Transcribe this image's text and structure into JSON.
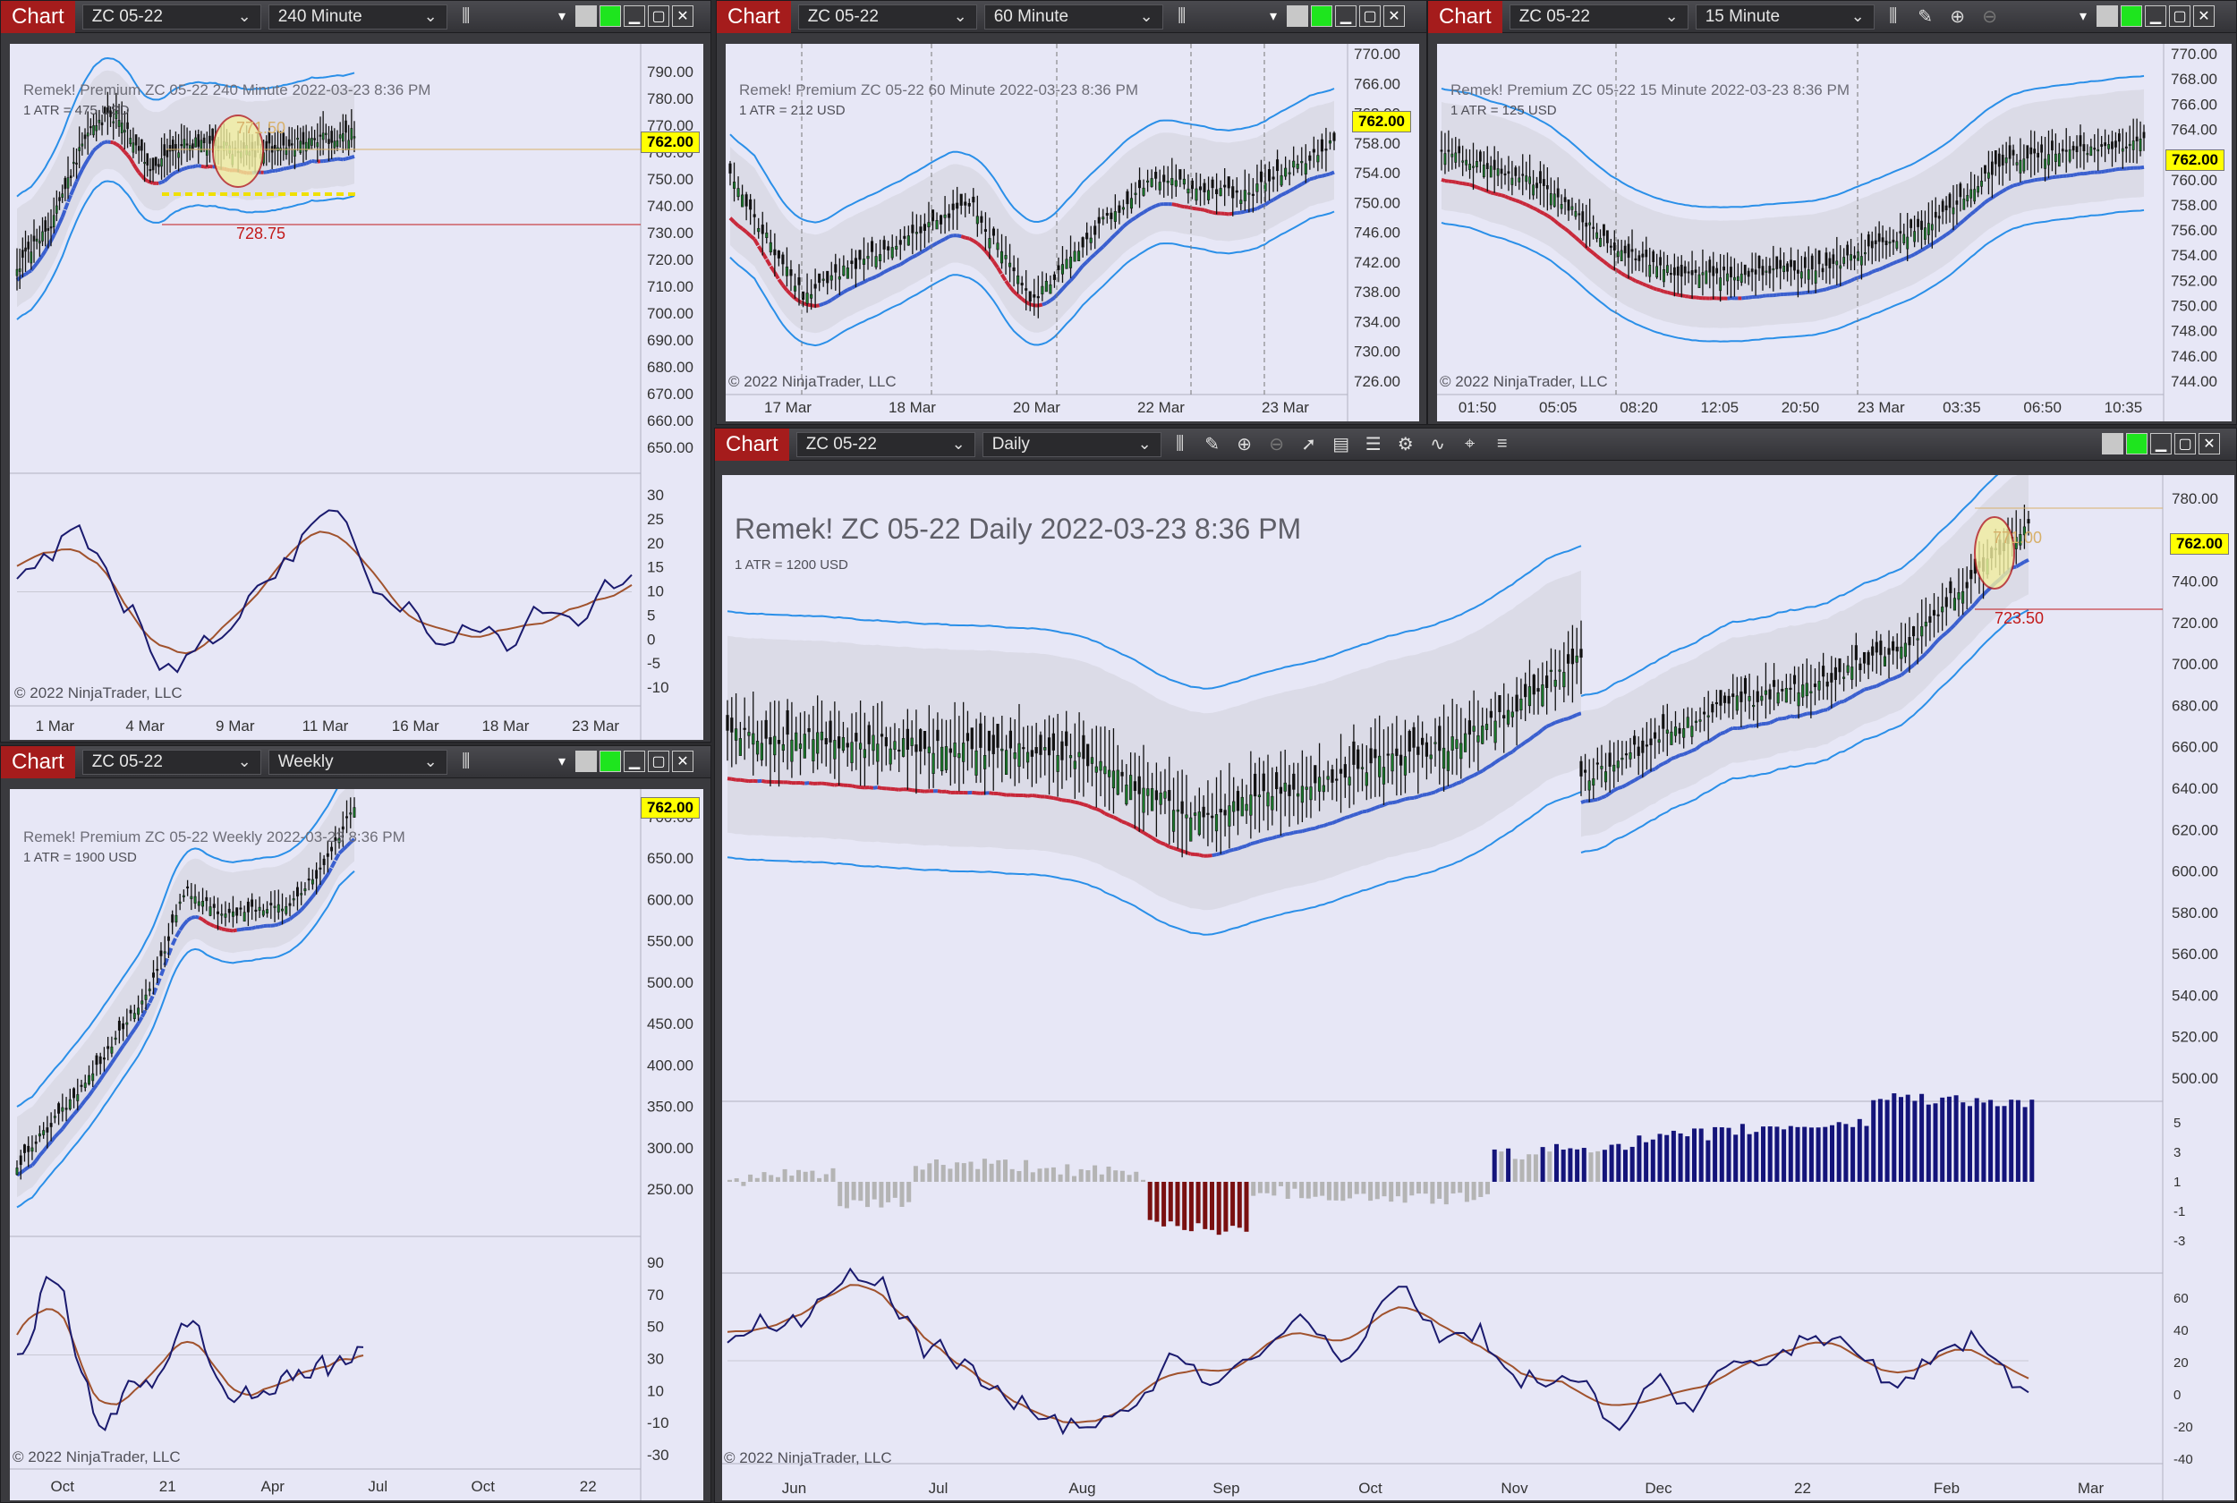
{
  "common": {
    "chart_label": "Chart",
    "symbol": "ZC 05-22",
    "copyright": "© 2022 NinjaTrader, LLC",
    "last_price": "762.00"
  },
  "windows": {
    "w240": {
      "interval": "240 Minute",
      "title": "Remek!  Premium  ZC 05-22  240 Minute  2022-03-23 8:36 PM",
      "atr": "1 ATR = 475 USD",
      "annot_high": "771.50",
      "annot_low": "728.75",
      "price_ticks": [
        "790.00",
        "780.00",
        "770.00",
        "760.00",
        "750.00",
        "740.00",
        "730.00",
        "720.00",
        "710.00",
        "700.00",
        "690.00",
        "680.00",
        "670.00",
        "660.00",
        "650.00"
      ],
      "osc_ticks": [
        "30",
        "25",
        "20",
        "15",
        "10",
        "5",
        "0",
        "-5",
        "-10"
      ],
      "date_ticks": [
        "1 Mar",
        "4 Mar",
        "9 Mar",
        "11 Mar",
        "16 Mar",
        "18 Mar",
        "23 Mar"
      ]
    },
    "w60": {
      "interval": "60 Minute",
      "title": "Remek!  Premium  ZC 05-22  60 Minute  2022-03-23 8:36 PM",
      "atr": "1 ATR = 212 USD",
      "price_ticks": [
        "770.00",
        "766.00",
        "762.00",
        "758.00",
        "754.00",
        "750.00",
        "746.00",
        "742.00",
        "738.00",
        "734.00",
        "730.00",
        "726.00"
      ],
      "date_ticks": [
        "17 Mar",
        "18 Mar",
        "20 Mar",
        "22 Mar",
        "23 Mar"
      ]
    },
    "w15": {
      "interval": "15 Minute",
      "title": "Remek!  Premium  ZC 05-22  15 Minute  2022-03-23 8:36 PM",
      "atr": "1 ATR = 125 USD",
      "price_ticks": [
        "770.00",
        "768.00",
        "766.00",
        "764.00",
        "762.00",
        "760.00",
        "758.00",
        "756.00",
        "754.00",
        "752.00",
        "750.00",
        "748.00",
        "746.00",
        "744.00"
      ],
      "date_ticks": [
        "01:50",
        "05:05",
        "08:20",
        "12:05",
        "20:50",
        "23 Mar",
        "03:35",
        "06:50",
        "10:35"
      ]
    },
    "wWeekly": {
      "interval": "Weekly",
      "title": "Remek!  Premium  ZC 05-22  Weekly  2022-03-23 8:36 PM",
      "atr": "1 ATR = 1900 USD",
      "price_ticks": [
        "700.00",
        "650.00",
        "600.00",
        "550.00",
        "500.00",
        "450.00",
        "400.00",
        "350.00",
        "300.00",
        "250.00"
      ],
      "osc_ticks": [
        "90",
        "70",
        "50",
        "30",
        "10",
        "-10",
        "-30"
      ],
      "date_ticks": [
        "Oct",
        "21",
        "Apr",
        "Jul",
        "Oct",
        "22"
      ]
    },
    "wDaily": {
      "interval": "Daily",
      "title": "Remek!  ZC 05-22  Daily  2022-03-23 8:36 PM",
      "atr": "1 ATR = 1200 USD",
      "annot_high": "771.00",
      "annot_low": "723.50",
      "price_ticks": [
        "780.00",
        "760.00",
        "740.00",
        "720.00",
        "700.00",
        "680.00",
        "660.00",
        "640.00",
        "620.00",
        "600.00",
        "580.00",
        "560.00",
        "540.00",
        "520.00",
        "500.00"
      ],
      "hist_ticks": [
        "5",
        "3",
        "1",
        "-1",
        "-3"
      ],
      "osc_ticks": [
        "60",
        "40",
        "20",
        "0",
        "-20",
        "-40"
      ],
      "date_ticks": [
        "Jun",
        "Jul",
        "Aug",
        "Sep",
        "Oct",
        "Nov",
        "Dec",
        "22",
        "Feb",
        "Mar"
      ]
    }
  },
  "icons": [
    "chevron-down-icon",
    "bar-chart-icon",
    "pencil-icon",
    "zoom-in-icon",
    "zoom-out-icon",
    "pointer-icon",
    "data-box-icon",
    "properties-icon",
    "strategy-icon",
    "indicator-icon",
    "list-icon",
    "minimize-icon",
    "maximize-icon",
    "close-icon"
  ],
  "colors": {
    "chart_button": "#a51c1c",
    "plot_bg": "#e7e7f6",
    "band": "#2a8fe8",
    "dashed_up": "#3a5fcf",
    "dashed_down": "#c8283a",
    "neutral_line": "#f0f000",
    "osc_fast": "#1a1a6e",
    "osc_slow": "#a0522d",
    "hist_pos": "#14147a",
    "hist_neg": "#7a1010",
    "hist_neutral": "#b4b4b4"
  }
}
